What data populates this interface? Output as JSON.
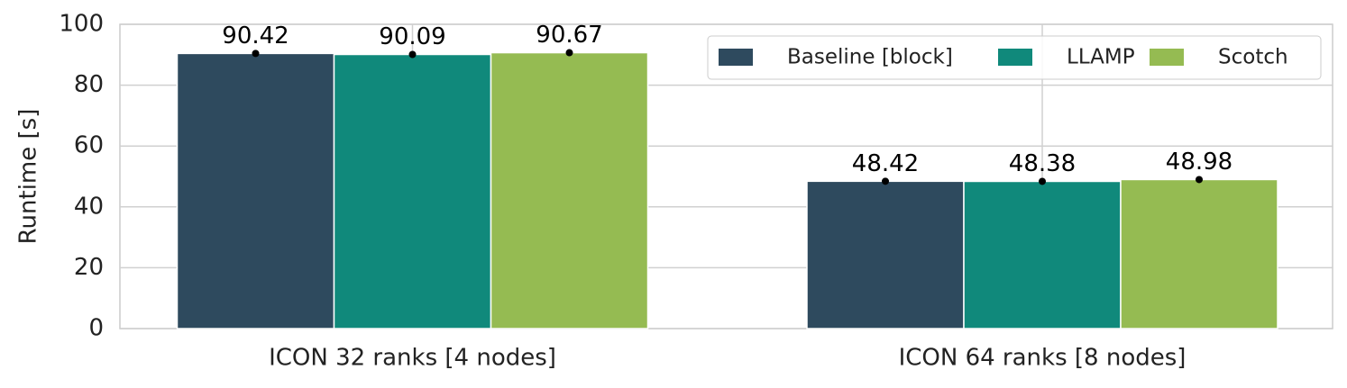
{
  "chart_data": {
    "type": "bar",
    "y_label": "Runtime [s]",
    "categories": [
      "ICON 32 ranks [4 nodes]",
      "ICON 64 ranks [8 nodes]"
    ],
    "series": [
      {
        "name": "Baseline [block]",
        "color": "#2e4a5e",
        "values": [
          90.42,
          48.42
        ]
      },
      {
        "name": "LLAMP",
        "color": "#10897b",
        "values": [
          90.09,
          48.38
        ]
      },
      {
        "name": "Scotch",
        "color": "#95bb52",
        "values": [
          90.67,
          48.98
        ]
      }
    ],
    "ylim": [
      0,
      100
    ],
    "yticks": [
      0,
      20,
      40,
      60,
      80,
      100
    ],
    "grid": true,
    "legend": "upper right"
  }
}
